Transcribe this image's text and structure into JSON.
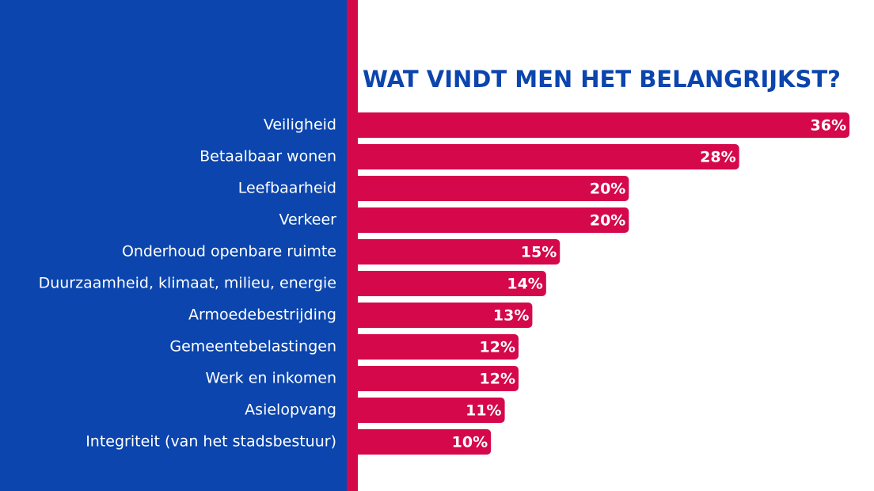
{
  "chart_data": {
    "type": "bar",
    "orientation": "horizontal",
    "title": "WAT VINDT MEN HET BELANGRIJKST?",
    "categories": [
      "Veiligheid",
      "Betaalbaar wonen",
      "Leefbaarheid",
      "Verkeer",
      "Onderhoud openbare ruimte",
      "Duurzaamheid, klimaat, milieu, energie",
      "Armoedebestrijding",
      "Gemeentebelastingen",
      "Werk en inkomen",
      "Asielopvang",
      "Integriteit (van het stadsbestuur)"
    ],
    "values": [
      36,
      28,
      20,
      20,
      15,
      14,
      13,
      12,
      12,
      11,
      10
    ],
    "value_labels": [
      "36%",
      "28%",
      "20%",
      "20%",
      "15%",
      "14%",
      "13%",
      "12%",
      "12%",
      "11%",
      "10%"
    ],
    "color": "#d5084c"
  }
}
